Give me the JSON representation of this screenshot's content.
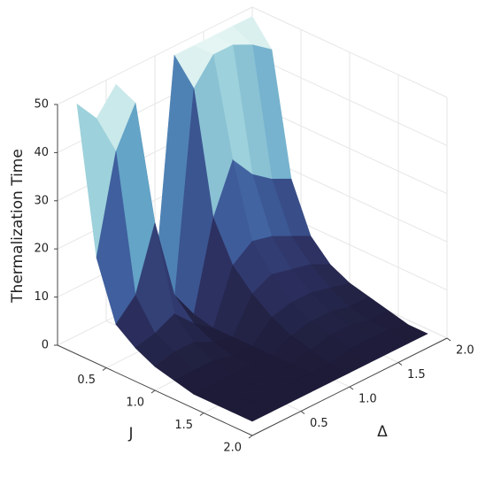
{
  "chart_data": {
    "type": "surface",
    "xlabel": "J",
    "ylabel": "Δ",
    "zlabel": "Thermalization Time",
    "x": [
      0.1,
      0.3,
      0.5,
      0.7,
      0.9,
      1.1,
      1.3,
      1.5,
      1.7,
      1.9
    ],
    "y": [
      0.1,
      0.3,
      0.5,
      0.7,
      0.9,
      1.1,
      1.3,
      1.5,
      1.7,
      1.9
    ],
    "z": [
      [
        50,
        45,
        50,
        30,
        5,
        50,
        50,
        50,
        50,
        50
      ],
      [
        20,
        40,
        48,
        15,
        3,
        45,
        50,
        50,
        48,
        45
      ],
      [
        8,
        12,
        25,
        8,
        2,
        20,
        30,
        25,
        22,
        20
      ],
      [
        5,
        6,
        8,
        4,
        1,
        12,
        15,
        14,
        12,
        10
      ],
      [
        3,
        4,
        4,
        2,
        1,
        8,
        10,
        9,
        8,
        6
      ],
      [
        2,
        2,
        2,
        1,
        1,
        5,
        6,
        6,
        5,
        4
      ],
      [
        1,
        1,
        1,
        1,
        1,
        3,
        4,
        4,
        3,
        3
      ],
      [
        1,
        1,
        1,
        1,
        1,
        2,
        3,
        3,
        2,
        2
      ],
      [
        1,
        1,
        1,
        1,
        1,
        1,
        2,
        2,
        2,
        1
      ],
      [
        1,
        1,
        1,
        1,
        1,
        1,
        1,
        1,
        1,
        1
      ]
    ],
    "xlim": [
      0,
      2
    ],
    "ylim": [
      0,
      2
    ],
    "zlim": [
      0,
      50
    ],
    "xticks": [
      0.5,
      {
        "value": 1,
        "label": "1.0"
      },
      1.5,
      {
        "value": 2,
        "label": "2.0"
      }
    ],
    "yticks": [
      0.5,
      {
        "value": 1,
        "label": "1.0"
      },
      1.5,
      {
        "value": 2,
        "label": "2.0"
      }
    ],
    "zticks": [
      0,
      10,
      20,
      30,
      40,
      50
    ],
    "grid": true,
    "colormap": [
      "#1b1832",
      "#2f3568",
      "#3f5f9e",
      "#5a9cc4",
      "#a6d8de",
      "#e4f5f3"
    ]
  }
}
